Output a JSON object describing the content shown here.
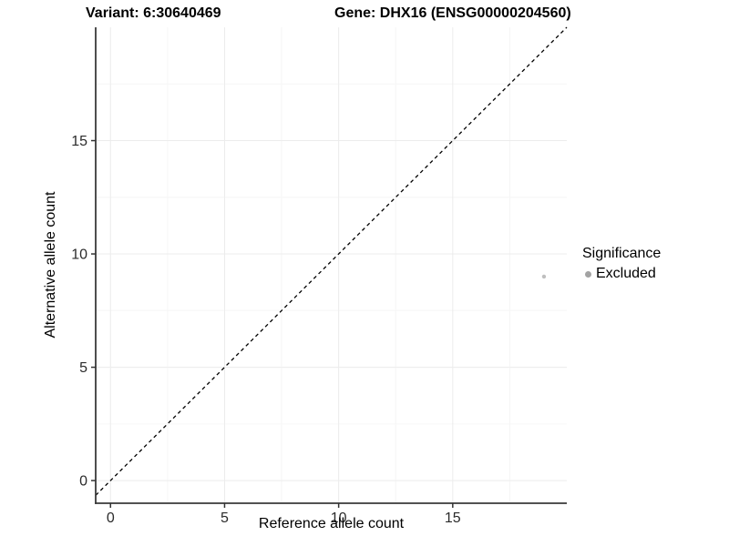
{
  "page": {
    "title_left": "Variant: 6:30640469",
    "title_right": "Gene: DHX16 (ENSG00000204560)"
  },
  "chart_data": {
    "type": "scatter",
    "title": "Variant: 6:30640469    Gene: DHX16 (ENSG00000204560)",
    "xlabel": "Reference allele count",
    "ylabel": "Alternative allele count",
    "xlim": [
      -0.65,
      20
    ],
    "ylim": [
      -1,
      20
    ],
    "x_major_ticks": [
      0,
      5,
      10,
      15
    ],
    "y_major_ticks": [
      0,
      5,
      10,
      15
    ],
    "x_minor_ticks": [
      2.5,
      7.5,
      12.5,
      17.5
    ],
    "y_minor_ticks": [
      2.5,
      7.5,
      12.5,
      17.5
    ],
    "grid": true,
    "series": [
      {
        "name": "Excluded",
        "points": [
          {
            "x": 19,
            "y": 9
          }
        ],
        "color": "#bfbfbf",
        "point_radius": 2.2
      }
    ],
    "reference_line": {
      "type": "abline",
      "slope": 1,
      "intercept": 0,
      "style": "dashed",
      "color": "#000000"
    },
    "legend": {
      "title": "Significance",
      "position": "right",
      "items": [
        {
          "label": "Excluded",
          "color": "#a3a3a3"
        }
      ]
    },
    "colors": {
      "axis_line": "#3a3a3a",
      "tick_mark": "#333333",
      "tick_label": "#2b2b2b",
      "grid_major": "#ececec",
      "grid_minor": "#f6f6f6"
    }
  }
}
